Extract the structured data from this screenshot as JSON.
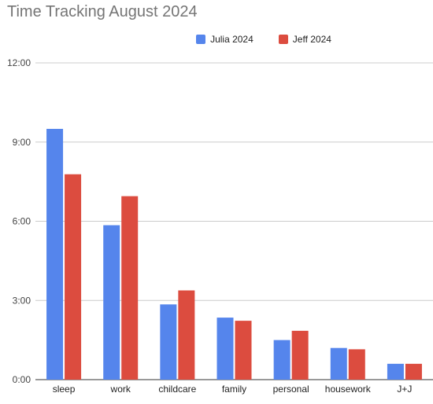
{
  "chart_data": {
    "type": "bar",
    "title": "Time Tracking August 2024",
    "categories": [
      "sleep",
      "work",
      "childcare",
      "family",
      "personal",
      "housework",
      "J+J"
    ],
    "series": [
      {
        "name": "Julia 2024",
        "color": "#5585ec",
        "values": [
          9.5,
          5.85,
          2.85,
          2.35,
          1.5,
          1.2,
          0.6
        ]
      },
      {
        "name": "Jeff 2024",
        "color": "#dc4c3f",
        "values": [
          7.78,
          6.95,
          3.38,
          2.23,
          1.85,
          1.15,
          0.6
        ]
      }
    ],
    "y_ticks": [
      "0:00",
      "3:00",
      "6:00",
      "9:00",
      "12:00"
    ],
    "y_tick_values": [
      0,
      3,
      6,
      9,
      12
    ],
    "ylim": [
      0,
      12
    ],
    "xlabel": "",
    "ylabel": "",
    "grid": true,
    "legend_position": "top-center"
  }
}
